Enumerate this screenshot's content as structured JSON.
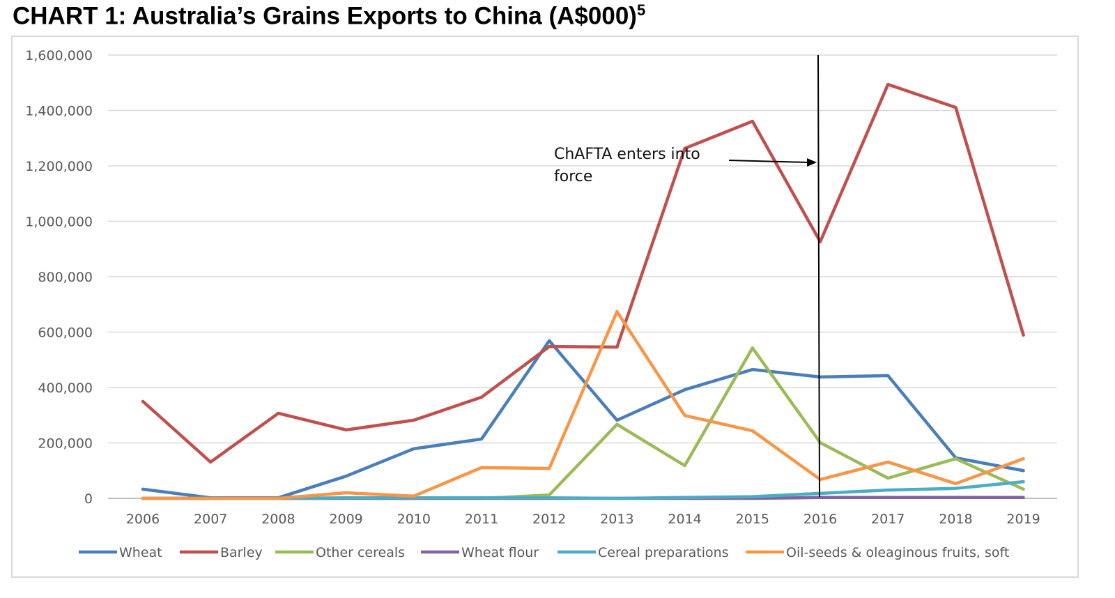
{
  "title": "CHART 1: Australia’s Grains Exports to China (A$000)",
  "title_footnote": "5",
  "chart_data": {
    "type": "line",
    "title": "CHART 1: Australia’s Grains Exports to China (A$000)",
    "xlabel": "",
    "ylabel": "",
    "ylim": [
      0,
      1600000
    ],
    "yticks": [
      0,
      200000,
      400000,
      600000,
      800000,
      1000000,
      1200000,
      1400000,
      1600000
    ],
    "ytick_labels": [
      "0",
      "200,000",
      "400,000",
      "600,000",
      "800,000",
      "1,000,000",
      "1,200,000",
      "1,400,000",
      "1,600,000"
    ],
    "grid": true,
    "legend_position": "bottom",
    "categories": [
      "2006",
      "2007",
      "2008",
      "2009",
      "2010",
      "2011",
      "2012",
      "2013",
      "2014",
      "2015",
      "2016",
      "2017",
      "2018",
      "2019"
    ],
    "series": [
      {
        "name": "Wheat",
        "color": "#4a7ebb",
        "values": [
          33000,
          2000,
          2000,
          80000,
          179000,
          214000,
          569000,
          282000,
          392000,
          465000,
          438000,
          443000,
          146000,
          100000
        ]
      },
      {
        "name": "Barley",
        "color": "#c0504d",
        "values": [
          350000,
          131000,
          307000,
          247000,
          282000,
          365000,
          548000,
          546000,
          1263000,
          1361000,
          926000,
          1494000,
          1411000,
          589000
        ]
      },
      {
        "name": "Other cereals",
        "color": "#9bbb59",
        "values": [
          0,
          0,
          0,
          0,
          0,
          0,
          12000,
          267000,
          118000,
          543000,
          201000,
          73000,
          143000,
          33000
        ]
      },
      {
        "name": "Wheat flour",
        "color": "#8064a2",
        "values": [
          0,
          0,
          0,
          0,
          0,
          0,
          0,
          0,
          0,
          0,
          3000,
          3000,
          3000,
          3000
        ]
      },
      {
        "name": "Cereal preparations",
        "color": "#4bacc6",
        "values": [
          0,
          0,
          0,
          2000,
          2000,
          2000,
          2000,
          0,
          3000,
          6000,
          18000,
          30000,
          36000,
          60000
        ]
      },
      {
        "name": "Oil-seeds & oleaginous fruits, soft",
        "color": "#f79646",
        "values": [
          0,
          0,
          0,
          20000,
          8000,
          111000,
          108000,
          674000,
          299000,
          244000,
          68000,
          131000,
          53000,
          143000
        ]
      }
    ],
    "annotation": {
      "lines": [
        "ChAFTA enters into",
        "force"
      ],
      "marker_year": "2016"
    }
  }
}
